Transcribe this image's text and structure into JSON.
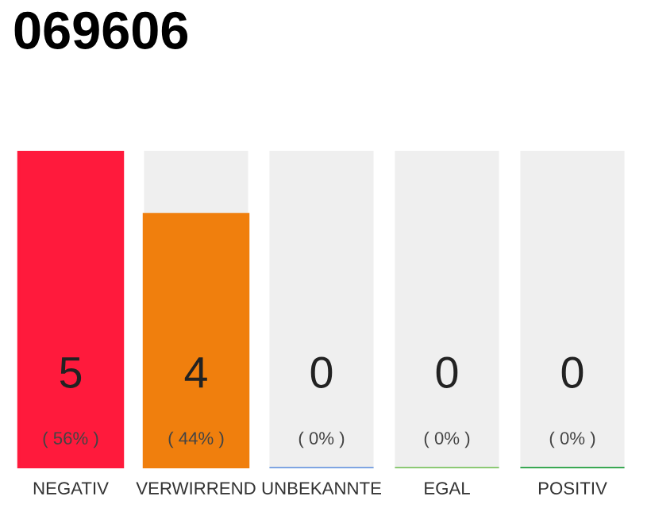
{
  "chart_data": {
    "type": "bar",
    "title": "069606",
    "categories": [
      "NEGATIV",
      "VERWIRREND",
      "UNBEKANNTE",
      "EGAL",
      "POSITIV"
    ],
    "values": [
      5,
      4,
      0,
      0,
      0
    ],
    "colors": [
      "#ff1a3c",
      "#f07f0d",
      "#6f9be0",
      "#7dc462",
      "#1f9e3c"
    ],
    "value_labels": [
      "5\n( 56% )",
      "4\n( 44% )",
      "0\n( 0% )",
      "0\n( 0% )",
      "0\n( 0% )"
    ],
    "ylim": [
      0,
      5
    ],
    "grid": false,
    "legend": false
  }
}
